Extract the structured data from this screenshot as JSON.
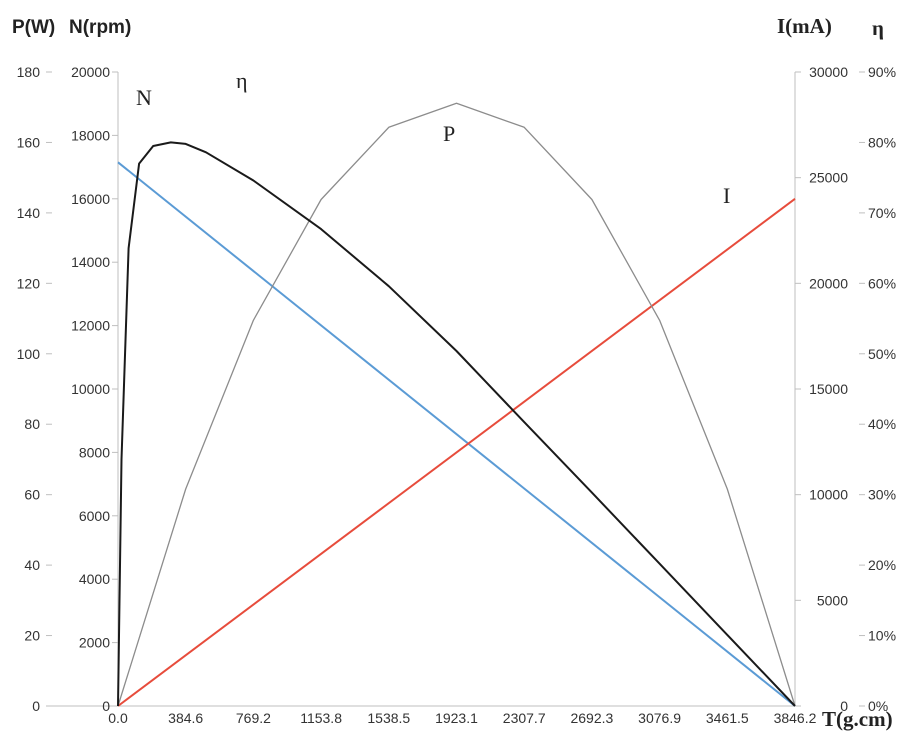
{
  "chart_data": {
    "type": "line",
    "axes": {
      "x": {
        "title": "T(g.cm)",
        "ticks": [
          "0.0",
          "384.6",
          "769.2",
          "1153.8",
          "1538.5",
          "1923.1",
          "2307.7",
          "2692.3",
          "3076.9",
          "3461.5",
          "3846.2"
        ],
        "range": [
          0,
          3846.2
        ]
      },
      "y_power": {
        "title": "P(W)",
        "ticks": [
          "0",
          "20",
          "40",
          "60",
          "80",
          "100",
          "120",
          "140",
          "160",
          "180"
        ],
        "range": [
          0,
          180
        ]
      },
      "y_speed": {
        "title": "N(rpm)",
        "ticks": [
          "0",
          "2000",
          "4000",
          "6000",
          "8000",
          "10000",
          "12000",
          "14000",
          "16000",
          "18000",
          "20000"
        ],
        "range": [
          0,
          20000
        ]
      },
      "y_current": {
        "title": "I(mA)",
        "ticks": [
          "0",
          "5000",
          "10000",
          "15000",
          "20000",
          "25000",
          "30000"
        ],
        "range": [
          0,
          30000
        ]
      },
      "y_efficiency": {
        "title": "η",
        "ticks": [
          "0%",
          "10%",
          "20%",
          "30%",
          "40%",
          "50%",
          "60%",
          "70%",
          "80%",
          "90%"
        ],
        "range": [
          0,
          90
        ]
      }
    },
    "series": [
      {
        "name": "N",
        "color": "#5b9bd5",
        "axis": "y_speed",
        "x": [
          0,
          3846.2
        ],
        "y": [
          17150,
          0
        ]
      },
      {
        "name": "I",
        "color": "#e74c3c",
        "axis": "y_current",
        "x": [
          0,
          3846.2
        ],
        "y": [
          0,
          24000
        ]
      },
      {
        "name": "P",
        "color": "#8c8c8c",
        "axis": "y_power",
        "x": [
          0,
          384.6,
          769.2,
          1153.8,
          1538.5,
          1923.1,
          2307.7,
          2692.3,
          3076.9,
          3461.5,
          3846.2
        ],
        "y": [
          0,
          61.6,
          109.5,
          143.8,
          164.3,
          171.1,
          164.3,
          143.8,
          109.5,
          61.6,
          0
        ]
      },
      {
        "name": "η",
        "color": "#1a1a1a",
        "axis": "y_efficiency",
        "x": [
          0,
          20,
          60,
          120,
          200,
          300,
          384.6,
          500,
          769.2,
          1153.8,
          1538.5,
          1923.1,
          2307.7,
          2692.3,
          3076.9,
          3461.5,
          3846.2
        ],
        "y": [
          0,
          35,
          65,
          77,
          79.5,
          80,
          79.8,
          78.6,
          74.6,
          67.7,
          59.6,
          50.4,
          40.3,
          30.3,
          20.2,
          10.1,
          0
        ]
      }
    ],
    "annotations": [
      "N",
      "η",
      "P",
      "I"
    ],
    "grid": false
  }
}
